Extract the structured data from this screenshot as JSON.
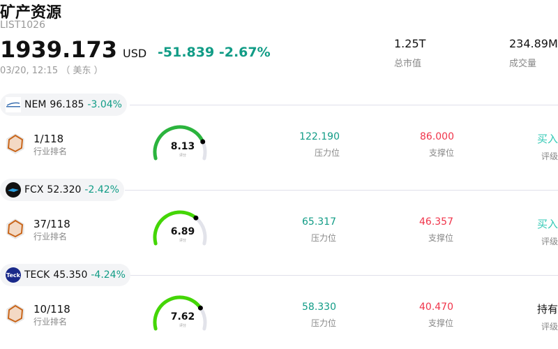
{
  "header": {
    "title": "矿产资源",
    "code": "LIST1026",
    "price": "1939.173",
    "currency": "USD",
    "change": "-51.839",
    "change_pct": "-2.67%",
    "time": "03/20, 12:15 （ 美东 ）"
  },
  "stats": [
    {
      "value": "1.25T",
      "label": "总市值"
    },
    {
      "value": "234.89M",
      "label": "成交量"
    }
  ],
  "labels": {
    "rank": "行业排名",
    "score": "评分",
    "pressure": "压力位",
    "support": "支撑位",
    "rating": "评级"
  },
  "colors": {
    "up": "#119c86",
    "down": "#f0344a",
    "buy": "#33c9b5"
  },
  "stocks": [
    {
      "ticker": "NEM",
      "price": "96.185",
      "change_pct": "-3.04%",
      "logo": "nem-logo",
      "rank": "1/118",
      "score": 8.13,
      "score_text": "8.13",
      "gauge_color": "#2bb43d",
      "pressure": "122.190",
      "support": "86.000",
      "rating": "买入",
      "rating_color": "#33c9b5"
    },
    {
      "ticker": "FCX",
      "price": "52.320",
      "change_pct": "-2.42%",
      "logo": "fcx-logo",
      "rank": "37/118",
      "score": 6.89,
      "score_text": "6.89",
      "gauge_color": "#44d606",
      "pressure": "65.317",
      "support": "46.357",
      "rating": "买入",
      "rating_color": "#33c9b5"
    },
    {
      "ticker": "TECK",
      "price": "45.350",
      "change_pct": "-4.24%",
      "logo": "Teck",
      "rank": "10/118",
      "score": 7.62,
      "score_text": "7.62",
      "gauge_color": "#44d606",
      "pressure": "58.330",
      "support": "40.470",
      "rating": "持有",
      "rating_color": "#111111"
    }
  ]
}
